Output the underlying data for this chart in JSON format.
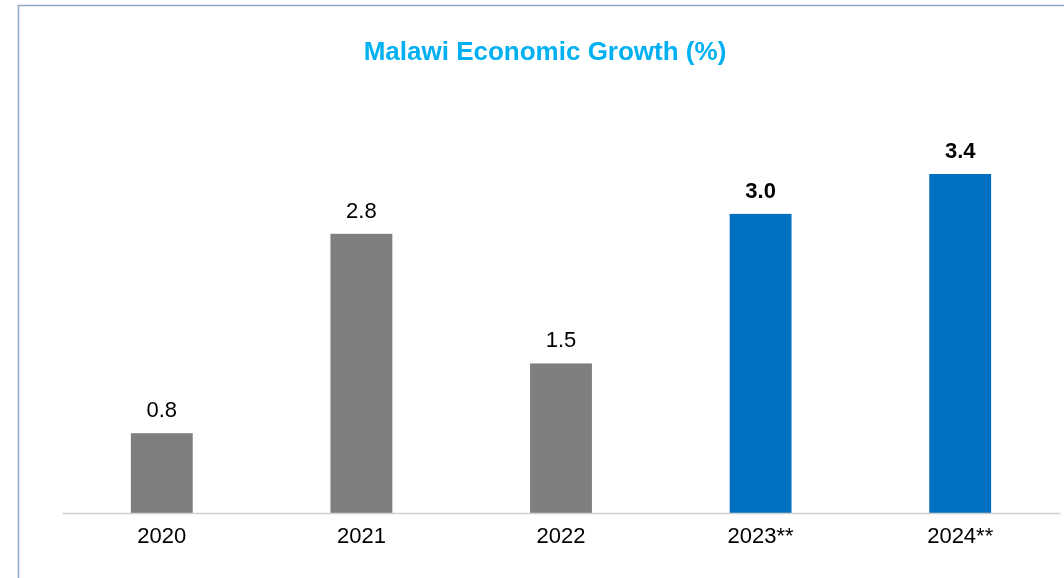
{
  "chart_data": {
    "type": "bar",
    "title": "Malawi Economic Growth (%)",
    "categories": [
      "2020",
      "2021",
      "2022",
      "2023**",
      "2024**"
    ],
    "values": [
      0.8,
      2.8,
      1.5,
      3.0,
      3.4
    ],
    "colors": [
      "#7f7f7f",
      "#7f7f7f",
      "#7f7f7f",
      "#0070c0",
      "#0070c0"
    ],
    "value_labels": [
      "0.8",
      "2.8",
      "1.5",
      "3.0",
      "3.4"
    ]
  }
}
